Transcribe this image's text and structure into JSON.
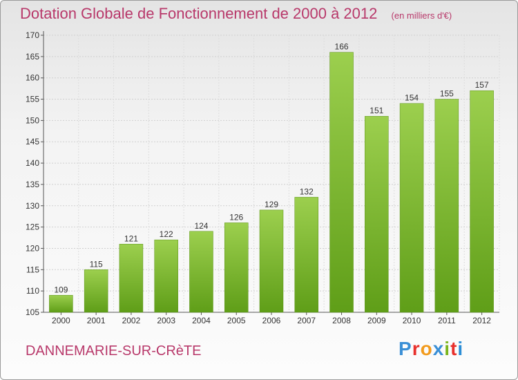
{
  "title": {
    "main": "Dotation Globale de Fonctionnement de 2000 à 2012",
    "unit": "(en milliers d'€)"
  },
  "commune": "DANNEMARIE-SUR-CRèTE",
  "brand": {
    "text": "Proxiti",
    "letter_colors": [
      "#3a8fd6",
      "#e8302c",
      "#f29b1d",
      "#3a8fd6",
      "#7ab51d",
      "#e8302c",
      "#2c8ed6"
    ]
  },
  "colors": {
    "title": "#b8386a",
    "bar_top": "#9ccf4e",
    "bar_bottom": "#5f9e18"
  },
  "chart_data": {
    "type": "bar",
    "title": "Dotation Globale de Fonctionnement de 2000 à 2012",
    "subtitle": "(en milliers d'€)",
    "categories": [
      "2000",
      "2001",
      "2002",
      "2003",
      "2004",
      "2005",
      "2006",
      "2007",
      "2008",
      "2009",
      "2010",
      "2011",
      "2012"
    ],
    "values": [
      109,
      115,
      121,
      122,
      124,
      126,
      129,
      132,
      166,
      151,
      154,
      155,
      157
    ],
    "ylim": [
      105,
      170
    ],
    "yticks": [
      105,
      110,
      115,
      120,
      125,
      130,
      135,
      140,
      145,
      150,
      155,
      160,
      165,
      170
    ],
    "grid": "horizontal",
    "legend": "none"
  }
}
